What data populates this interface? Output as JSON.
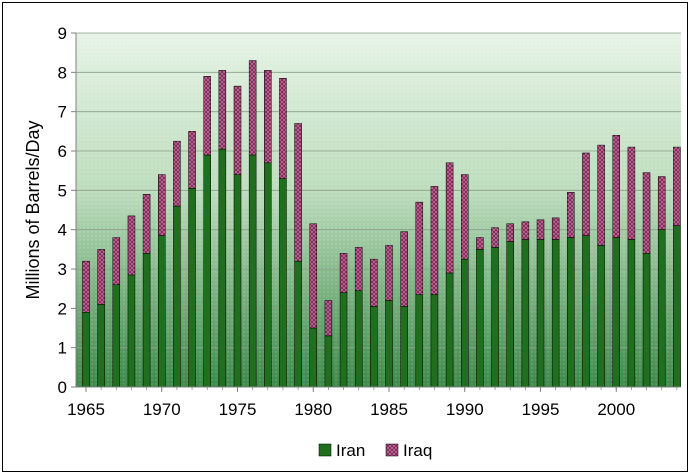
{
  "chart_data": {
    "type": "bar",
    "stacked": true,
    "title": "",
    "xlabel": "",
    "ylabel": "Millions of Barrels/Day",
    "ylim": [
      0,
      9
    ],
    "yticks": [
      "0",
      "1",
      "2",
      "3",
      "4",
      "5",
      "6",
      "7",
      "8",
      "9"
    ],
    "xticks": [
      "1965",
      "1970",
      "1975",
      "1980",
      "1985",
      "1990",
      "1995",
      "2000"
    ],
    "grid": true,
    "legend_position": "bottom",
    "categories": [
      1965,
      1966,
      1967,
      1968,
      1969,
      1970,
      1971,
      1972,
      1973,
      1974,
      1975,
      1976,
      1977,
      1978,
      1979,
      1980,
      1981,
      1982,
      1983,
      1984,
      1985,
      1986,
      1987,
      1988,
      1989,
      1990,
      1991,
      1992,
      1993,
      1994,
      1995,
      1996,
      1997,
      1998,
      1999,
      2000,
      2001,
      2002,
      2003,
      2004
    ],
    "series": [
      {
        "name": "Iran",
        "color": "#1f6f1f",
        "values": [
          1.9,
          2.1,
          2.6,
          2.85,
          3.4,
          3.85,
          4.6,
          5.05,
          5.9,
          6.05,
          5.4,
          5.9,
          5.7,
          5.3,
          3.2,
          1.5,
          1.3,
          2.4,
          2.45,
          2.05,
          2.2,
          2.05,
          2.35,
          2.35,
          2.9,
          3.25,
          3.5,
          3.55,
          3.7,
          3.75,
          3.75,
          3.75,
          3.8,
          3.85,
          3.6,
          3.8,
          3.75,
          3.4,
          4.0,
          4.1
        ]
      },
      {
        "name": "Iraq",
        "color": "#8b2c5f",
        "values": [
          1.3,
          1.4,
          1.2,
          1.5,
          1.5,
          1.55,
          1.65,
          1.45,
          2.0,
          2.0,
          2.25,
          2.4,
          2.35,
          2.55,
          3.5,
          2.65,
          0.9,
          1.0,
          1.1,
          1.2,
          1.4,
          1.9,
          2.35,
          2.75,
          2.8,
          2.15,
          0.3,
          0.5,
          0.45,
          0.45,
          0.5,
          0.55,
          1.15,
          2.1,
          2.55,
          2.6,
          2.35,
          2.05,
          1.35,
          2.0
        ]
      }
    ]
  }
}
